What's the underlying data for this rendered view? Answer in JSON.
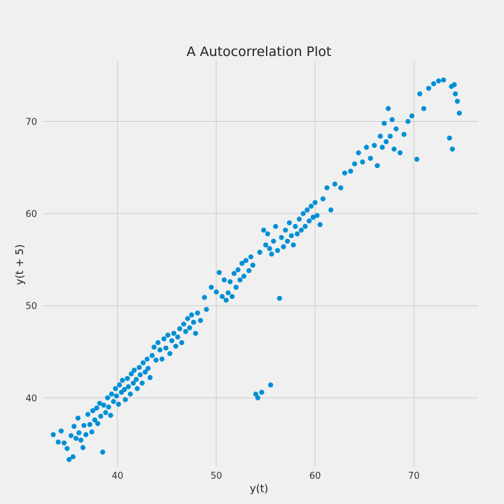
{
  "chart_data": {
    "type": "scatter",
    "title": "A Autocorrelation Plot",
    "xlabel": "y(t)",
    "ylabel": "y(t + 5)",
    "xlim": [
      32.5,
      76.5
    ],
    "ylim": [
      32.5,
      76.5
    ],
    "xticks": [
      40,
      50,
      60,
      70
    ],
    "yticks": [
      40,
      50,
      60,
      70
    ],
    "xtick_labels": [
      "40",
      "50",
      "60",
      "70"
    ],
    "ytick_labels": [
      "40",
      "50",
      "60",
      "70"
    ],
    "grid": true,
    "lag": 5,
    "color": "#008fd5",
    "background": "#f0f0f0",
    "points": [
      [
        33.5,
        36.0
      ],
      [
        34.0,
        35.2
      ],
      [
        34.3,
        36.4
      ],
      [
        34.6,
        35.1
      ],
      [
        34.9,
        34.5
      ],
      [
        35.1,
        33.3
      ],
      [
        35.3,
        35.9
      ],
      [
        35.5,
        33.6
      ],
      [
        35.6,
        36.9
      ],
      [
        35.8,
        35.6
      ],
      [
        36.0,
        37.8
      ],
      [
        36.1,
        36.2
      ],
      [
        36.3,
        35.4
      ],
      [
        36.5,
        34.6
      ],
      [
        36.6,
        37.0
      ],
      [
        36.8,
        36.0
      ],
      [
        37.0,
        38.2
      ],
      [
        37.2,
        37.1
      ],
      [
        37.4,
        36.3
      ],
      [
        37.5,
        38.6
      ],
      [
        37.7,
        37.6
      ],
      [
        37.9,
        38.9
      ],
      [
        38.0,
        37.2
      ],
      [
        38.2,
        39.4
      ],
      [
        38.3,
        38.0
      ],
      [
        38.5,
        34.1
      ],
      [
        38.6,
        39.2
      ],
      [
        38.8,
        38.4
      ],
      [
        39.0,
        40.0
      ],
      [
        39.1,
        39.0
      ],
      [
        39.3,
        38.1
      ],
      [
        39.4,
        40.4
      ],
      [
        39.6,
        39.6
      ],
      [
        39.8,
        41.0
      ],
      [
        39.9,
        40.2
      ],
      [
        40.1,
        39.3
      ],
      [
        40.2,
        41.4
      ],
      [
        40.4,
        40.6
      ],
      [
        40.5,
        41.9
      ],
      [
        40.7,
        40.9
      ],
      [
        40.8,
        39.8
      ],
      [
        41.0,
        42.1
      ],
      [
        41.1,
        41.2
      ],
      [
        41.3,
        40.4
      ],
      [
        41.4,
        42.6
      ],
      [
        41.6,
        41.6
      ],
      [
        41.7,
        43.0
      ],
      [
        41.9,
        42.0
      ],
      [
        42.0,
        41.0
      ],
      [
        42.2,
        43.3
      ],
      [
        42.3,
        42.5
      ],
      [
        42.5,
        41.6
      ],
      [
        42.6,
        43.8
      ],
      [
        42.8,
        42.8
      ],
      [
        43.0,
        44.2
      ],
      [
        43.1,
        43.2
      ],
      [
        43.3,
        42.2
      ],
      [
        43.5,
        44.6
      ],
      [
        43.7,
        45.5
      ],
      [
        43.9,
        44.1
      ],
      [
        44.1,
        46.0
      ],
      [
        44.3,
        45.2
      ],
      [
        44.5,
        44.2
      ],
      [
        44.7,
        46.4
      ],
      [
        44.9,
        45.4
      ],
      [
        45.1,
        46.8
      ],
      [
        45.3,
        44.8
      ],
      [
        45.5,
        46.2
      ],
      [
        45.7,
        47.0
      ],
      [
        45.9,
        45.6
      ],
      [
        46.1,
        46.6
      ],
      [
        46.3,
        47.5
      ],
      [
        46.5,
        46.0
      ],
      [
        46.7,
        48.0
      ],
      [
        46.9,
        47.2
      ],
      [
        47.1,
        48.6
      ],
      [
        47.3,
        47.6
      ],
      [
        47.5,
        49.0
      ],
      [
        47.7,
        48.2
      ],
      [
        47.9,
        47.0
      ],
      [
        48.1,
        49.2
      ],
      [
        48.4,
        48.4
      ],
      [
        48.8,
        50.9
      ],
      [
        49.0,
        49.6
      ],
      [
        49.5,
        52.0
      ],
      [
        50.0,
        51.5
      ],
      [
        50.3,
        53.6
      ],
      [
        50.6,
        51.0
      ],
      [
        50.8,
        52.8
      ],
      [
        51.0,
        50.6
      ],
      [
        51.2,
        51.4
      ],
      [
        51.4,
        52.6
      ],
      [
        51.6,
        51.0
      ],
      [
        51.8,
        53.5
      ],
      [
        52.0,
        52.0
      ],
      [
        52.2,
        53.9
      ],
      [
        52.4,
        52.8
      ],
      [
        52.6,
        54.6
      ],
      [
        52.8,
        53.2
      ],
      [
        53.0,
        54.9
      ],
      [
        53.3,
        53.8
      ],
      [
        53.5,
        55.3
      ],
      [
        53.7,
        54.4
      ],
      [
        54.0,
        40.4
      ],
      [
        54.2,
        40.0
      ],
      [
        54.4,
        55.8
      ],
      [
        54.6,
        40.6
      ],
      [
        54.8,
        58.2
      ],
      [
        55.0,
        56.6
      ],
      [
        55.2,
        57.8
      ],
      [
        55.4,
        56.2
      ],
      [
        55.5,
        41.4
      ],
      [
        55.6,
        55.6
      ],
      [
        55.8,
        57.0
      ],
      [
        56.0,
        58.6
      ],
      [
        56.2,
        56.0
      ],
      [
        56.4,
        50.8
      ],
      [
        56.6,
        57.4
      ],
      [
        56.8,
        56.4
      ],
      [
        57.0,
        58.2
      ],
      [
        57.2,
        57.0
      ],
      [
        57.4,
        59.0
      ],
      [
        57.6,
        57.6
      ],
      [
        57.8,
        56.6
      ],
      [
        58.0,
        58.6
      ],
      [
        58.2,
        57.8
      ],
      [
        58.4,
        59.4
      ],
      [
        58.6,
        58.2
      ],
      [
        58.8,
        60.0
      ],
      [
        59.0,
        58.6
      ],
      [
        59.2,
        60.4
      ],
      [
        59.4,
        59.2
      ],
      [
        59.6,
        60.8
      ],
      [
        59.8,
        59.6
      ],
      [
        60.0,
        61.2
      ],
      [
        60.2,
        59.8
      ],
      [
        60.5,
        58.8
      ],
      [
        60.8,
        61.6
      ],
      [
        61.2,
        62.8
      ],
      [
        61.6,
        60.4
      ],
      [
        62.0,
        63.2
      ],
      [
        62.6,
        62.8
      ],
      [
        63.0,
        64.4
      ],
      [
        63.6,
        64.6
      ],
      [
        64.0,
        65.4
      ],
      [
        64.4,
        66.6
      ],
      [
        64.8,
        65.6
      ],
      [
        65.2,
        67.2
      ],
      [
        65.6,
        66.0
      ],
      [
        66.0,
        67.4
      ],
      [
        66.3,
        65.2
      ],
      [
        66.6,
        68.4
      ],
      [
        66.8,
        67.2
      ],
      [
        67.0,
        69.8
      ],
      [
        67.2,
        67.8
      ],
      [
        67.4,
        71.4
      ],
      [
        67.6,
        68.4
      ],
      [
        67.8,
        70.2
      ],
      [
        68.0,
        67.0
      ],
      [
        68.2,
        69.2
      ],
      [
        68.6,
        66.6
      ],
      [
        69.0,
        68.6
      ],
      [
        69.4,
        70.0
      ],
      [
        69.8,
        70.6
      ],
      [
        70.3,
        65.9
      ],
      [
        70.6,
        73.0
      ],
      [
        71.0,
        71.4
      ],
      [
        71.5,
        73.6
      ],
      [
        72.0,
        74.1
      ],
      [
        72.5,
        74.4
      ],
      [
        73.0,
        74.5
      ],
      [
        73.6,
        68.2
      ],
      [
        73.8,
        73.8
      ],
      [
        73.9,
        67.0
      ],
      [
        74.1,
        74.0
      ],
      [
        74.2,
        73.0
      ],
      [
        74.4,
        72.2
      ],
      [
        74.6,
        70.9
      ]
    ]
  }
}
